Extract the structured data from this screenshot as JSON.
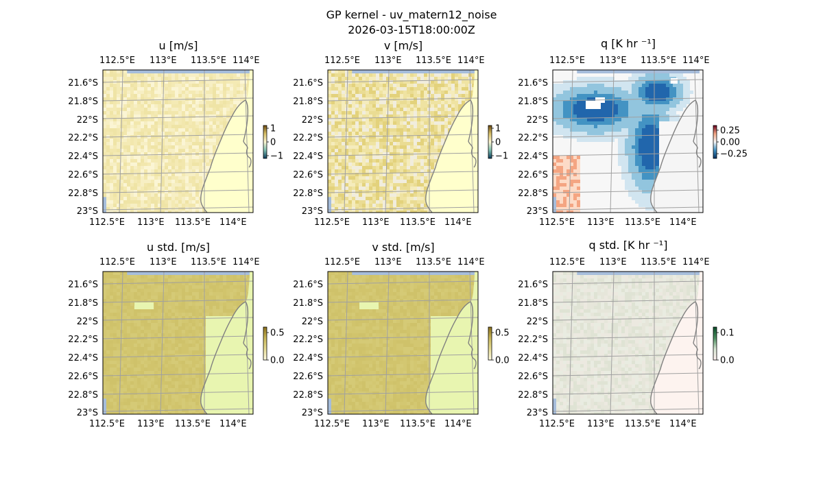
{
  "figure": {
    "title": "GP kernel - uv_matern12_noise",
    "timestamp": "2026-03-15T18:00:00Z"
  },
  "chart_data": [
    {
      "id": "u",
      "type": "heatmap",
      "title": "u [m/s]",
      "xlim": [
        112.35,
        114.2
      ],
      "ylim": [
        -23.0,
        -21.45
      ],
      "x_ticks": [
        "112.5°E",
        "113°E",
        "113.5°E",
        "114°E"
      ],
      "y_ticks": [
        "21.6°S",
        "21.8°S",
        "22°S",
        "22.2°S",
        "22.4°S",
        "22.6°S",
        "22.8°S",
        "23°S"
      ],
      "colorbar": {
        "ticks": [
          "1",
          "0",
          "−1"
        ],
        "range": [
          -1.2,
          1.2
        ],
        "cmap": "BrBG_gold"
      },
      "field_colors": [
        "#f4eab4",
        "#f2e7ad",
        "#efe4a6",
        "#f7efc4",
        "#fbf5d4"
      ],
      "land_color": "#ffffcc"
    },
    {
      "id": "v",
      "type": "heatmap",
      "title": "v [m/s]",
      "xlim": [
        112.35,
        114.2
      ],
      "ylim": [
        -23.0,
        -21.45
      ],
      "x_ticks": [
        "112.5°E",
        "113°E",
        "113.5°E",
        "114°E"
      ],
      "y_ticks": [
        "21.6°S",
        "21.8°S",
        "22°S",
        "22.2°S",
        "22.4°S",
        "22.6°S",
        "22.8°S",
        "23°S"
      ],
      "colorbar": {
        "ticks": [
          "1",
          "0",
          "−1"
        ],
        "range": [
          -1.2,
          1.2
        ],
        "cmap": "BrBG_gold"
      },
      "field_colors": [
        "#efe3a2",
        "#eadc93",
        "#e3d27c",
        "#f5ecbc",
        "#f1eddd"
      ],
      "land_color": "#ffffcc"
    },
    {
      "id": "q",
      "type": "heatmap",
      "title": "q [K hr ⁻¹]",
      "xlim": [
        112.35,
        114.2
      ],
      "ylim": [
        -23.0,
        -21.45
      ],
      "x_ticks": [
        "112.5°E",
        "113°E",
        "113.5°E",
        "114°E"
      ],
      "y_ticks": [
        "21.6°S",
        "21.8°S",
        "22°S",
        "22.2°S",
        "22.4°S",
        "22.6°S",
        "22.8°S",
        "23°S"
      ],
      "colorbar": {
        "ticks": [
          "0.25",
          "0.00",
          "−0.25"
        ],
        "range": [
          -0.35,
          0.35
        ],
        "cmap": "RdBu_r"
      },
      "field_colors": [
        "#d1e5f0",
        "#92c5de",
        "#4393c3",
        "#2166ac",
        "#f7f7f7",
        "#fddbc7",
        "#f4a582"
      ],
      "land_color": "#f5f5f5"
    },
    {
      "id": "u_std",
      "type": "heatmap",
      "title": "u std. [m/s]",
      "xlim": [
        112.35,
        114.2
      ],
      "ylim": [
        -23.0,
        -21.45
      ],
      "x_ticks": [
        "112.5°E",
        "113°E",
        "113.5°E",
        "114°E"
      ],
      "y_ticks": [
        "21.6°S",
        "21.8°S",
        "22°S",
        "22.2°S",
        "22.4°S",
        "22.6°S",
        "22.8°S",
        "23°S"
      ],
      "colorbar": {
        "ticks": [
          "0.5",
          "0.0"
        ],
        "range": [
          0,
          0.6
        ],
        "cmap": "gold"
      },
      "field_colors": [
        "#d3c771",
        "#d1c46c",
        "#d5ca76",
        "#cfc26a"
      ],
      "land_color": "#e8f5b0"
    },
    {
      "id": "v_std",
      "type": "heatmap",
      "title": "v std. [m/s]",
      "xlim": [
        112.35,
        114.2
      ],
      "ylim": [
        -23.0,
        -21.45
      ],
      "x_ticks": [
        "112.5°E",
        "113°E",
        "113.5°E",
        "114°E"
      ],
      "y_ticks": [
        "21.6°S",
        "21.8°S",
        "22°S",
        "22.2°S",
        "22.4°S",
        "22.6°S",
        "22.8°S",
        "23°S"
      ],
      "colorbar": {
        "ticks": [
          "0.5",
          "0.0"
        ],
        "range": [
          0,
          0.6
        ],
        "cmap": "gold"
      },
      "field_colors": [
        "#d3c771",
        "#d1c46c",
        "#d5ca76",
        "#cfc26a"
      ],
      "land_color": "#e8f5b0"
    },
    {
      "id": "q_std",
      "type": "heatmap",
      "title": "q std. [K hr ⁻¹]",
      "xlim": [
        112.35,
        114.2
      ],
      "ylim": [
        -23.0,
        -21.45
      ],
      "x_ticks": [
        "112.5°E",
        "113°E",
        "113.5°E",
        "114°E"
      ],
      "y_ticks": [
        "21.6°S",
        "21.8°S",
        "22°S",
        "22.2°S",
        "22.4°S",
        "22.6°S",
        "22.8°S",
        "23°S"
      ],
      "colorbar": {
        "ticks": [
          "0.1",
          "0.0"
        ],
        "range": [
          0,
          0.12
        ],
        "cmap": "green_pink"
      },
      "field_colors": [
        "#ece9e0",
        "#e6e6da",
        "#e9ece1",
        "#dfe3d4"
      ],
      "land_color": "#fdf3ef"
    }
  ],
  "styles": {
    "ocean_color": "#a6bddb",
    "grid_color": "#a0a0a0",
    "coast_color": "#808080"
  }
}
